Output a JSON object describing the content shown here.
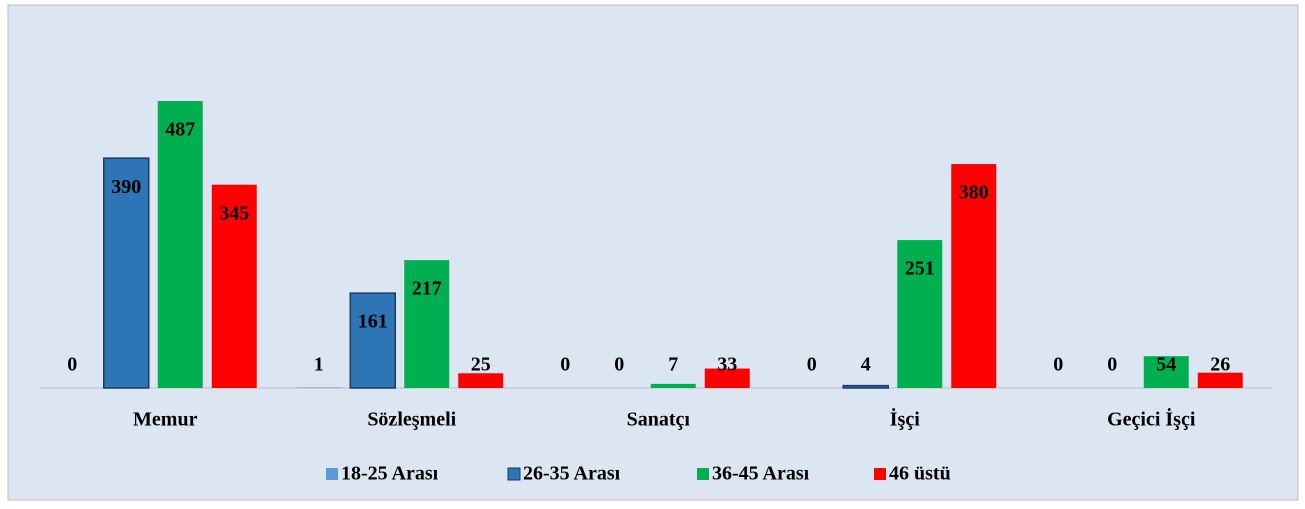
{
  "chart_data": {
    "type": "bar",
    "categories": [
      "Memur",
      "Sözleşmeli",
      "Sanatçı",
      "İşçi",
      "Geçici İşçi"
    ],
    "series": [
      {
        "name": "18-25 Arası",
        "color": "#5b9bd5",
        "values": [
          0,
          1,
          0,
          0,
          0
        ]
      },
      {
        "name": "26-35 Arası",
        "color": "#2e75b6",
        "values": [
          390,
          161,
          0,
          4,
          0
        ]
      },
      {
        "name": "36-45 Arası",
        "color": "#00b050",
        "values": [
          487,
          217,
          7,
          251,
          54
        ]
      },
      {
        "name": "46 üstü",
        "color": "#ff0000",
        "values": [
          345,
          25,
          33,
          380,
          26
        ]
      }
    ],
    "legend": "bottom"
  }
}
